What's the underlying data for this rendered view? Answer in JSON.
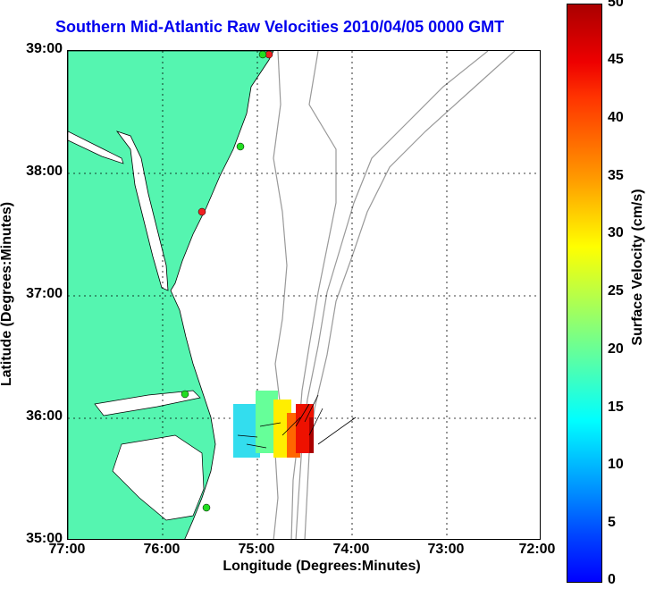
{
  "title": "Southern Mid-Atlantic Raw Velocities 2010/04/05 0000 GMT",
  "axes": {
    "xlabel": "Longitude (Degrees:Minutes)",
    "ylabel": "Latitude (Degrees:Minutes)",
    "xticks": [
      "77:00",
      "76:00",
      "75:00",
      "74:00",
      "73:00",
      "72:00"
    ],
    "yticks": [
      "39:00",
      "38:00",
      "37:00",
      "36:00",
      "35:00"
    ],
    "grid": true,
    "xlim": [
      -77,
      -72
    ],
    "ylim": [
      35,
      39
    ]
  },
  "colorbar": {
    "label": "Surface Velocity (cm/s)",
    "ticks": [
      "50",
      "45",
      "40",
      "35",
      "30",
      "25",
      "20",
      "15",
      "10",
      "5",
      "0"
    ],
    "range": [
      0,
      50
    ]
  },
  "colors": {
    "title": "#0000ee",
    "land": "#55f5b0",
    "water": "#ffffff",
    "bathymetry": "#999999",
    "station_green": "#22dd22",
    "station_red": "#ee2222"
  },
  "stations": [
    {
      "lon": -75.1,
      "lat": 38.97,
      "color": "red"
    },
    {
      "lon": -75.2,
      "lat": 38.97,
      "color": "green"
    },
    {
      "lon": -75.1,
      "lat": 38.2,
      "color": "green"
    },
    {
      "lon": -75.5,
      "lat": 37.68,
      "color": "red"
    },
    {
      "lon": -75.65,
      "lat": 36.18,
      "color": "green"
    },
    {
      "lon": -75.5,
      "lat": 35.25,
      "color": "green"
    }
  ]
}
